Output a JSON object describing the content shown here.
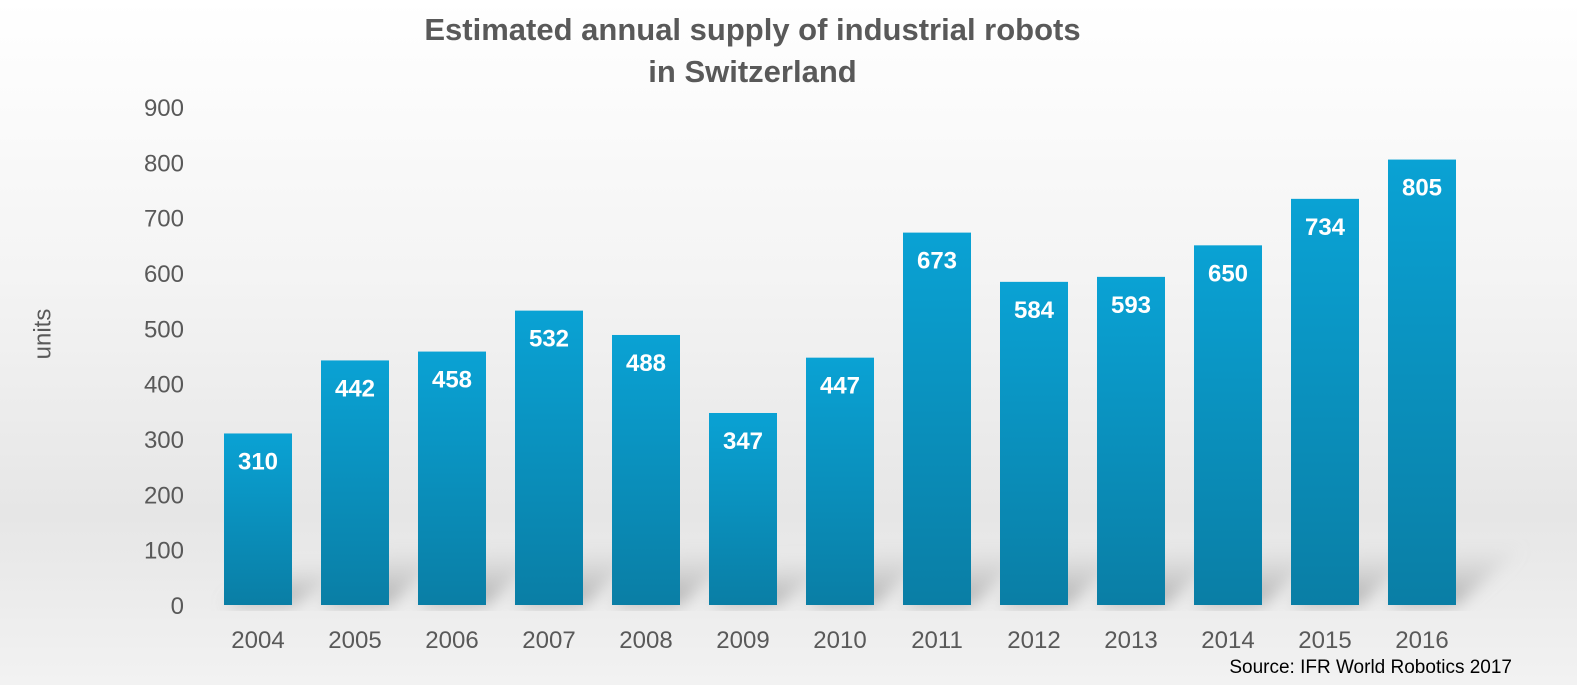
{
  "chart_data": {
    "type": "bar",
    "title_line1": "Estimated annual supply of industrial robots",
    "title_line2": "in Switzerland",
    "xlabel": "",
    "ylabel": "units",
    "ylim": [
      0,
      900
    ],
    "yticks": [
      0,
      100,
      200,
      300,
      400,
      500,
      600,
      700,
      800,
      900
    ],
    "categories": [
      "2004",
      "2005",
      "2006",
      "2007",
      "2008",
      "2009",
      "2010",
      "2011",
      "2012",
      "2013",
      "2014",
      "2015",
      "2016"
    ],
    "values": [
      310,
      442,
      458,
      532,
      488,
      347,
      447,
      673,
      584,
      593,
      650,
      734,
      805
    ],
    "grid": false,
    "legend": "none",
    "source": "Source: IFR World Robotics 2017",
    "colors": {
      "bar_top": "#0aa0d2",
      "bar_bottom": "#0a7fa6",
      "text": "#595959"
    }
  }
}
